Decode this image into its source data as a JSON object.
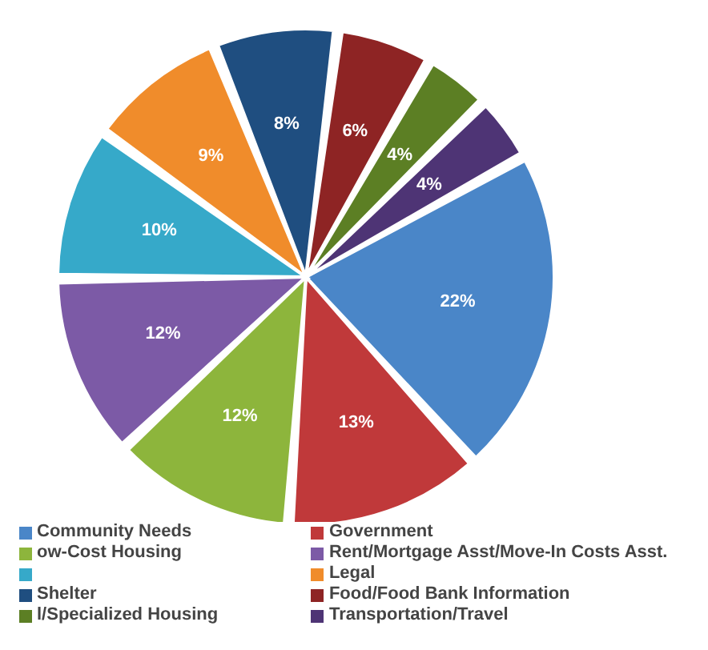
{
  "chart_data": {
    "type": "pie",
    "categories": [
      "Community Needs",
      "Government",
      "ow-Cost Housing",
      "Rent/Mortgage Asst/Move-In Costs Asst.",
      null,
      "Legal",
      "Shelter",
      "Food/Food Bank Information",
      "l/Specialized Housing",
      "Transportation/Travel"
    ],
    "values": [
      22,
      13,
      12,
      12,
      10,
      9,
      8,
      6,
      4,
      4
    ],
    "value_labels": [
      "22%",
      "13%",
      "12%",
      "12%",
      "10%",
      "9%",
      "8%",
      "6%",
      "4%",
      "4%"
    ],
    "colors": [
      "#4a86c8",
      "#c0393a",
      "#8db53c",
      "#7c5aa6",
      "#36a9c9",
      "#f08c2b",
      "#1f4e80",
      "#8e2424",
      "#5c7f24",
      "#4e3475"
    ],
    "legend": "bottom"
  }
}
